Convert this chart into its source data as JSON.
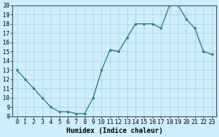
{
  "x": [
    0,
    1,
    2,
    3,
    4,
    5,
    6,
    7,
    8,
    9,
    10,
    11,
    12,
    13,
    14,
    15,
    16,
    17,
    18,
    19,
    20,
    21,
    22,
    23
  ],
  "y": [
    13,
    12,
    11,
    10,
    9,
    8.5,
    8.5,
    8.3,
    8.3,
    10,
    13,
    15.2,
    15,
    16.5,
    18,
    18,
    18,
    17.5,
    20,
    20,
    18.5,
    17.5,
    15,
    14.7
  ],
  "line_color": "#2e7d6e",
  "bg_color": "#cceeff",
  "grid_color": "#aacccc",
  "xlabel": "Humidex (Indice chaleur)",
  "ylim": [
    8,
    20
  ],
  "xlim": [
    -0.5,
    23.5
  ],
  "yticks": [
    8,
    9,
    10,
    11,
    12,
    13,
    14,
    15,
    16,
    17,
    18,
    19,
    20
  ],
  "xtick_labels": [
    "0",
    "1",
    "2",
    "3",
    "4",
    "5",
    "6",
    "7",
    "8",
    "9",
    "1011",
    "1213",
    "1415",
    "1617",
    "1819",
    "2021",
    "2223"
  ],
  "tick_fontsize": 6,
  "xlabel_fontsize": 7
}
